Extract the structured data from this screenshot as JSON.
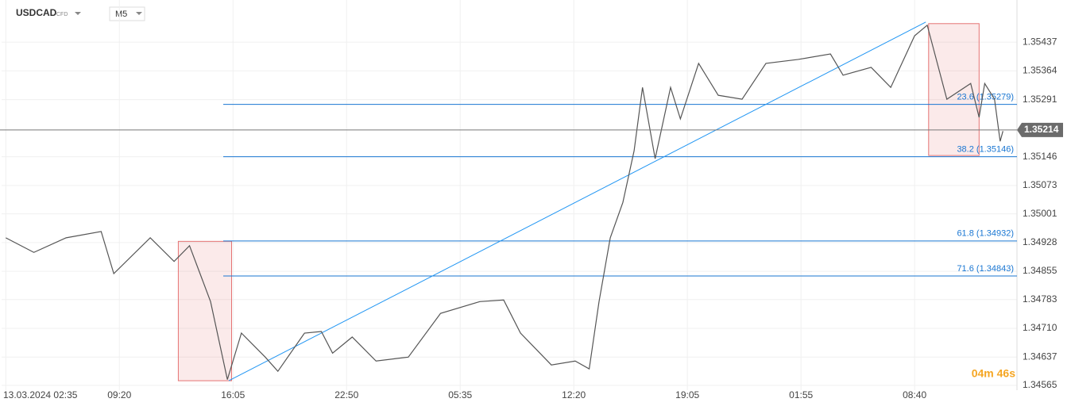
{
  "header": {
    "symbol": "USDCAD",
    "instrument_type": "CFD",
    "timeframe": "M5"
  },
  "timer": "04m 46s",
  "chart_data": {
    "type": "line",
    "x": [
      0,
      20,
      43,
      68,
      77,
      103,
      120,
      131,
      146,
      158,
      168,
      185,
      194,
      213,
      225,
      233,
      247,
      264,
      287,
      310,
      338,
      355,
      367,
      389,
      406,
      416,
      423,
      431,
      440,
      448,
      454,
      463,
      474,
      481,
      494,
      508,
      525,
      542,
      565,
      588,
      597,
      617,
      631,
      648,
      657,
      671,
      688,
      694,
      698,
      705,
      709,
      711
    ],
    "series": [
      {
        "color": "#555555",
        "values": [
          1.3494,
          1.34903,
          1.3494,
          1.34956,
          1.34849,
          1.3494,
          1.3488,
          1.3492,
          1.34778,
          1.3458,
          1.34698,
          1.34637,
          1.34601,
          1.34698,
          1.34702,
          1.34647,
          1.34688,
          1.34627,
          1.34637,
          1.34748,
          1.34778,
          1.34782,
          1.34698,
          1.34617,
          1.34627,
          1.34607,
          1.34778,
          1.3494,
          1.3503,
          1.35161,
          1.35322,
          1.35141,
          1.35322,
          1.35242,
          1.35383,
          1.35302,
          1.35292,
          1.35383,
          1.35393,
          1.35407,
          1.35353,
          1.35373,
          1.35322,
          1.35453,
          1.3548,
          1.35292,
          1.35332,
          1.35246,
          1.35332,
          1.35292,
          1.35185,
          1.35211
        ]
      }
    ],
    "xlim": [
      -3,
      721
    ],
    "ylim": [
      1.34553,
      1.35544
    ],
    "xticks": [
      {
        "value": 0,
        "label": "13.03.2024 02:35"
      },
      {
        "value": 81,
        "label": "09:20"
      },
      {
        "value": 162,
        "label": "16:05"
      },
      {
        "value": 243,
        "label": "22:50"
      },
      {
        "value": 324,
        "label": "05:35"
      },
      {
        "value": 405,
        "label": "12:20"
      },
      {
        "value": 486,
        "label": "19:05"
      },
      {
        "value": 567,
        "label": "01:55"
      },
      {
        "value": 648,
        "label": "08:40"
      }
    ],
    "yticks": [
      1.34565,
      1.34637,
      {
        "value": 1.3471,
        "label": "1.34710"
      },
      1.34783,
      1.34855,
      1.34928,
      1.35001,
      1.35073,
      1.35146,
      1.35291,
      1.35364,
      1.35437
    ],
    "grid": true,
    "current_price": 1.35214,
    "fib_levels": [
      {
        "value": 1.35279,
        "label": "23.6 (1.35279)"
      },
      {
        "value": 1.35146,
        "label": "38.2 (1.35146)"
      },
      {
        "value": 1.34932,
        "label": "61.8 (1.34932)"
      },
      {
        "value": 1.34843,
        "label": "71.6 (1.34843)"
      }
    ],
    "fib_color": "#1976d2",
    "trend_line": {
      "x": [
        159,
        656
      ],
      "values": [
        1.34577,
        1.35488
      ],
      "color": "#2196f3"
    },
    "zones": [
      {
        "x": [
          123,
          161
        ],
        "values": [
          1.34577,
          1.34931
        ]
      },
      {
        "x": [
          658,
          694
        ],
        "values": [
          1.35149,
          1.35484
        ]
      }
    ],
    "zone_color": "#e57373"
  }
}
